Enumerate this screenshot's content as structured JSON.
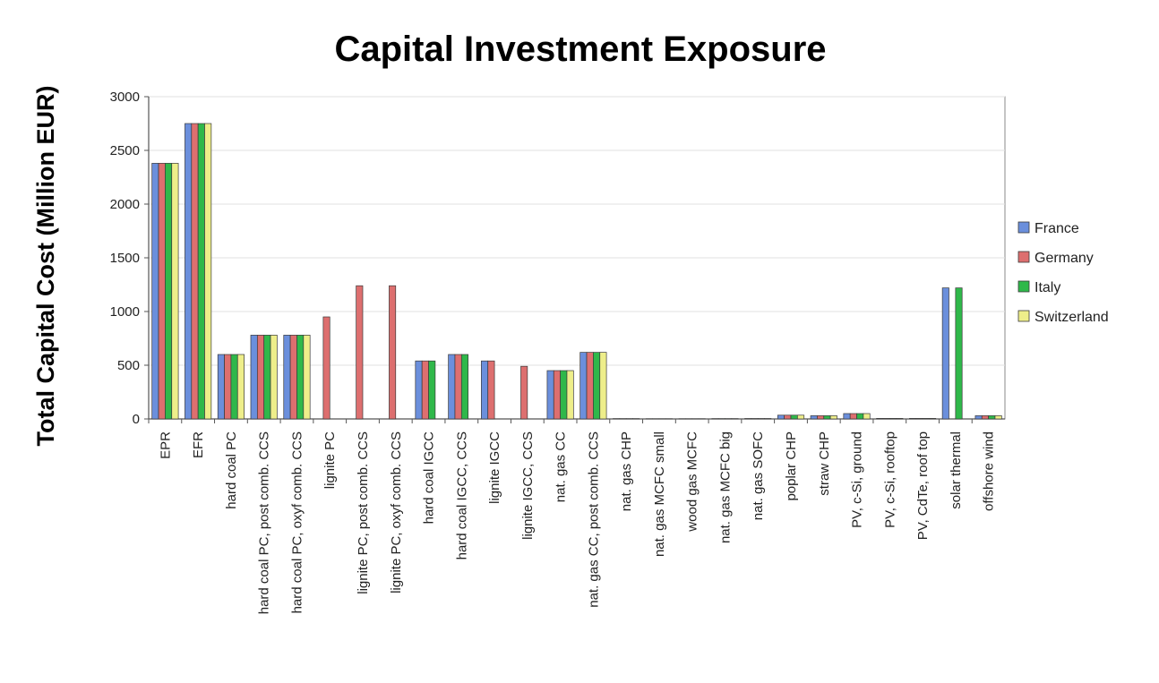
{
  "chart_data": {
    "type": "bar",
    "title": "Capital Investment Exposure",
    "xlabel": "",
    "ylabel": "Total Capital Cost (Million EUR)",
    "ylim": [
      0,
      3000
    ],
    "yticks": [
      0,
      500,
      1000,
      1500,
      2000,
      2500,
      3000
    ],
    "grid": true,
    "legend_position": "right",
    "categories": [
      "EPR",
      "EFR",
      "hard coal PC",
      "hard coal PC, post comb. CCS",
      "hard coal PC, oxyf comb. CCS",
      "lignite PC",
      "lignite PC, post comb. CCS",
      "lignite PC, oxyf comb. CCS",
      "hard coal IGCC",
      "hard coal IGCC, CCS",
      "lignite IGCC",
      "lignite IGCC, CCS",
      "nat. gas CC",
      "nat. gas CC, post comb. CCS",
      "nat. gas CHP",
      "nat. gas MCFC small",
      "wood gas MCFC",
      "nat. gas MCFC big",
      "nat. gas SOFC",
      "poplar CHP",
      "straw CHP",
      "PV, c-Si, ground",
      "PV, c-Si, rooftop",
      "PV, CdTe, roof top",
      "solar thermal",
      "offshore wind"
    ],
    "series": [
      {
        "name": "France",
        "color": "#6b8fdc",
        "values": [
          2380,
          2750,
          600,
          780,
          780,
          0,
          0,
          0,
          540,
          600,
          540,
          0,
          450,
          620,
          3,
          2,
          2,
          3,
          4,
          35,
          30,
          50,
          5,
          5,
          1220,
          30
        ]
      },
      {
        "name": "Germany",
        "color": "#dd6f6f",
        "values": [
          2380,
          2750,
          600,
          780,
          780,
          950,
          1240,
          1240,
          540,
          600,
          540,
          490,
          450,
          620,
          3,
          2,
          2,
          3,
          4,
          35,
          30,
          50,
          5,
          5,
          0,
          30
        ]
      },
      {
        "name": "Italy",
        "color": "#2fb84a",
        "values": [
          2380,
          2750,
          600,
          780,
          780,
          0,
          0,
          0,
          540,
          600,
          0,
          0,
          450,
          620,
          3,
          2,
          2,
          3,
          4,
          35,
          30,
          50,
          5,
          5,
          1220,
          30
        ]
      },
      {
        "name": "Switzerland",
        "color": "#eeee8a",
        "values": [
          2380,
          2750,
          600,
          780,
          780,
          0,
          0,
          0,
          0,
          0,
          0,
          0,
          450,
          620,
          3,
          2,
          2,
          3,
          4,
          35,
          30,
          50,
          5,
          5,
          0,
          30
        ]
      }
    ]
  }
}
